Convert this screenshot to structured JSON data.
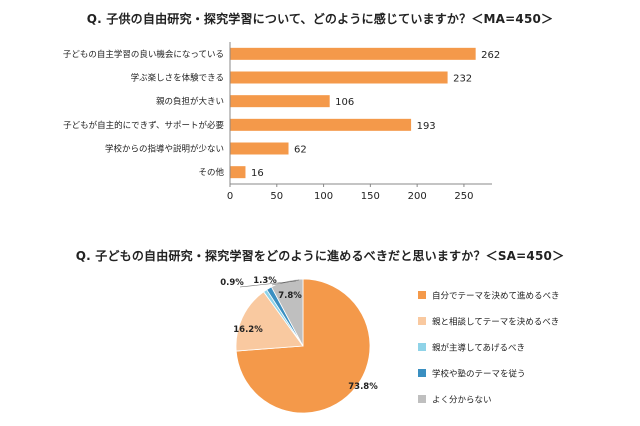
{
  "bar_title": "Q. 子供の自由研究・探究学習について、どのように感じていますか？＜MA=450＞",
  "pie_title": "Q. 子どもの自由研究・探究学習をどのように進めるべきだと思いますか？＜SA=450＞",
  "chart_data": [
    {
      "type": "bar",
      "orientation": "horizontal",
      "categories": [
        "子どもの自主学習の良い機会になっている",
        "学ぶ楽しさを体験できる",
        "親の負担が大きい",
        "子どもが自主的にできず、サポートが必要",
        "学校からの指導や説明が少ない",
        "その他"
      ],
      "values": [
        262,
        232,
        106,
        193,
        62,
        16
      ],
      "xlim": [
        0,
        280
      ],
      "xticks": [
        0,
        50,
        100,
        150,
        200,
        250
      ],
      "color": "#F4994A",
      "grid": false
    },
    {
      "type": "pie",
      "labels": [
        "自分でテーマを決めて進めるべき",
        "親と相談してテーマを決めるべき",
        "親が主導してあげるべき",
        "学校や塾のテーマを従う",
        "よく分からない"
      ],
      "values": [
        73.8,
        16.2,
        0.9,
        1.3,
        7.8
      ],
      "value_labels": [
        "73.8%",
        "16.2%",
        "0.9%",
        "1.3%",
        "7.8%"
      ],
      "colors": [
        "#F4994A",
        "#F9C9A0",
        "#8FD3E8",
        "#3A8FC1",
        "#BFBFBF"
      ],
      "legend_position": "right"
    }
  ]
}
